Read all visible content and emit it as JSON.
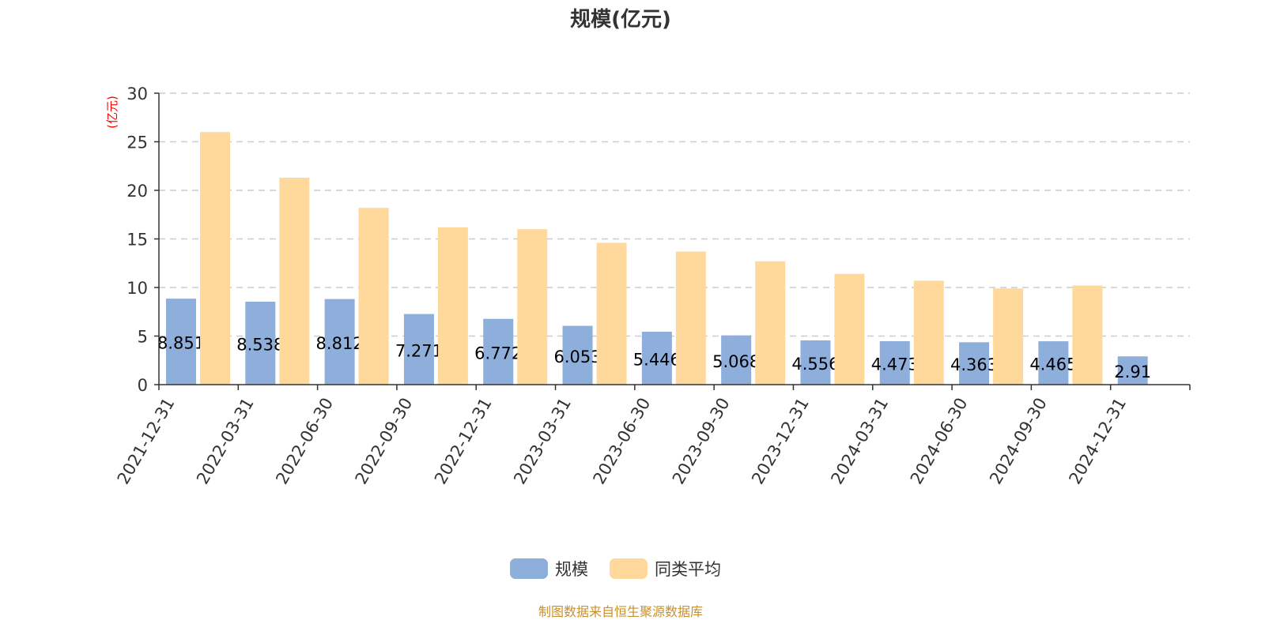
{
  "chart_data": {
    "type": "bar",
    "title": "规模(亿元)",
    "ylabel": "(亿元)",
    "xlabel": "",
    "ylim": [
      0,
      30
    ],
    "yticks": [
      0,
      5,
      10,
      15,
      20,
      25,
      30
    ],
    "grid": true,
    "legend_position": "bottom-center",
    "categories": [
      "2021-12-31",
      "2022-03-31",
      "2022-06-30",
      "2022-09-30",
      "2022-12-31",
      "2023-03-31",
      "2023-06-30",
      "2023-09-30",
      "2023-12-31",
      "2024-03-31",
      "2024-06-30",
      "2024-09-30",
      "2024-12-31"
    ],
    "series": [
      {
        "name": "规模",
        "color": "#8eaedb",
        "show_labels": true,
        "values": [
          8.851,
          8.538,
          8.812,
          7.271,
          6.772,
          6.053,
          5.446,
          5.068,
          4.556,
          4.473,
          4.363,
          4.465,
          2.91
        ]
      },
      {
        "name": "同类平均",
        "color": "#fed99b",
        "show_labels": false,
        "values": [
          26.0,
          21.3,
          18.2,
          16.2,
          16.0,
          14.6,
          13.7,
          12.7,
          11.4,
          10.7,
          9.9,
          10.2,
          null
        ]
      }
    ]
  },
  "footer": "制图数据来自恒生聚源数据库",
  "colors": {
    "ylabel": "#ff0000",
    "footer": "#c8902a",
    "axis": "#333333",
    "grid": "#cccccc"
  }
}
